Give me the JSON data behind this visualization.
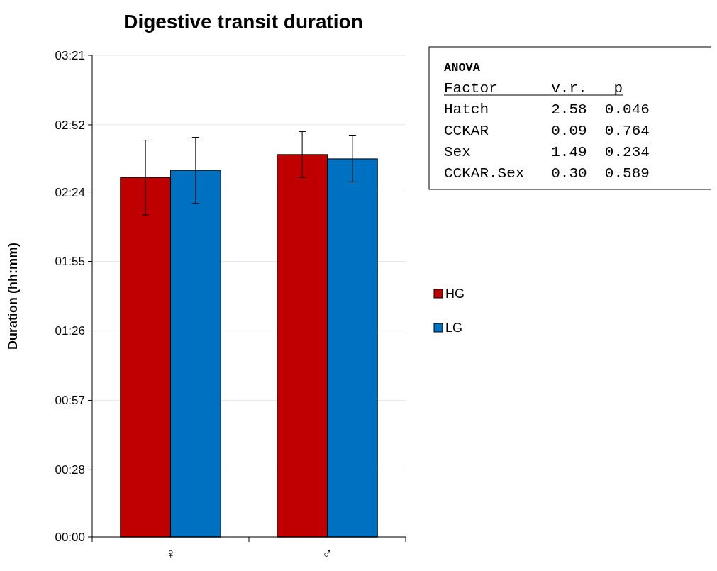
{
  "chart_data": {
    "type": "bar",
    "title": "Digestive transit duration",
    "ylabel": "Duration (hh:mm)",
    "categories": [
      "♀",
      "♂"
    ],
    "series": [
      {
        "name": "HG",
        "color": "#c00000",
        "values": [
          2.5,
          2.66
        ],
        "errors": [
          0.26,
          0.16
        ]
      },
      {
        "name": "LG",
        "color": "#0070c0",
        "values": [
          2.55,
          2.63
        ],
        "errors": [
          0.23,
          0.16
        ]
      }
    ],
    "ylim": [
      0,
      3.35
    ],
    "yticks": [
      {
        "value": 0,
        "label": "00:00"
      },
      {
        "value": 0.4667,
        "label": "00:28"
      },
      {
        "value": 0.95,
        "label": "00:57"
      },
      {
        "value": 1.4333,
        "label": "01:26"
      },
      {
        "value": 1.9167,
        "label": "01:55"
      },
      {
        "value": 2.4,
        "label": "02:24"
      },
      {
        "value": 2.8667,
        "label": "02:52"
      },
      {
        "value": 3.35,
        "label": "03:21"
      }
    ],
    "grid": "y",
    "legend": "right",
    "annotations": [
      "ANOVA",
      "Factor      v.r.   p",
      "Hatch       2.58  0.046",
      "CCKAR       0.09  0.764",
      "Sex         1.49  0.234",
      "CCKAR.Sex   0.30  0.589"
    ]
  }
}
